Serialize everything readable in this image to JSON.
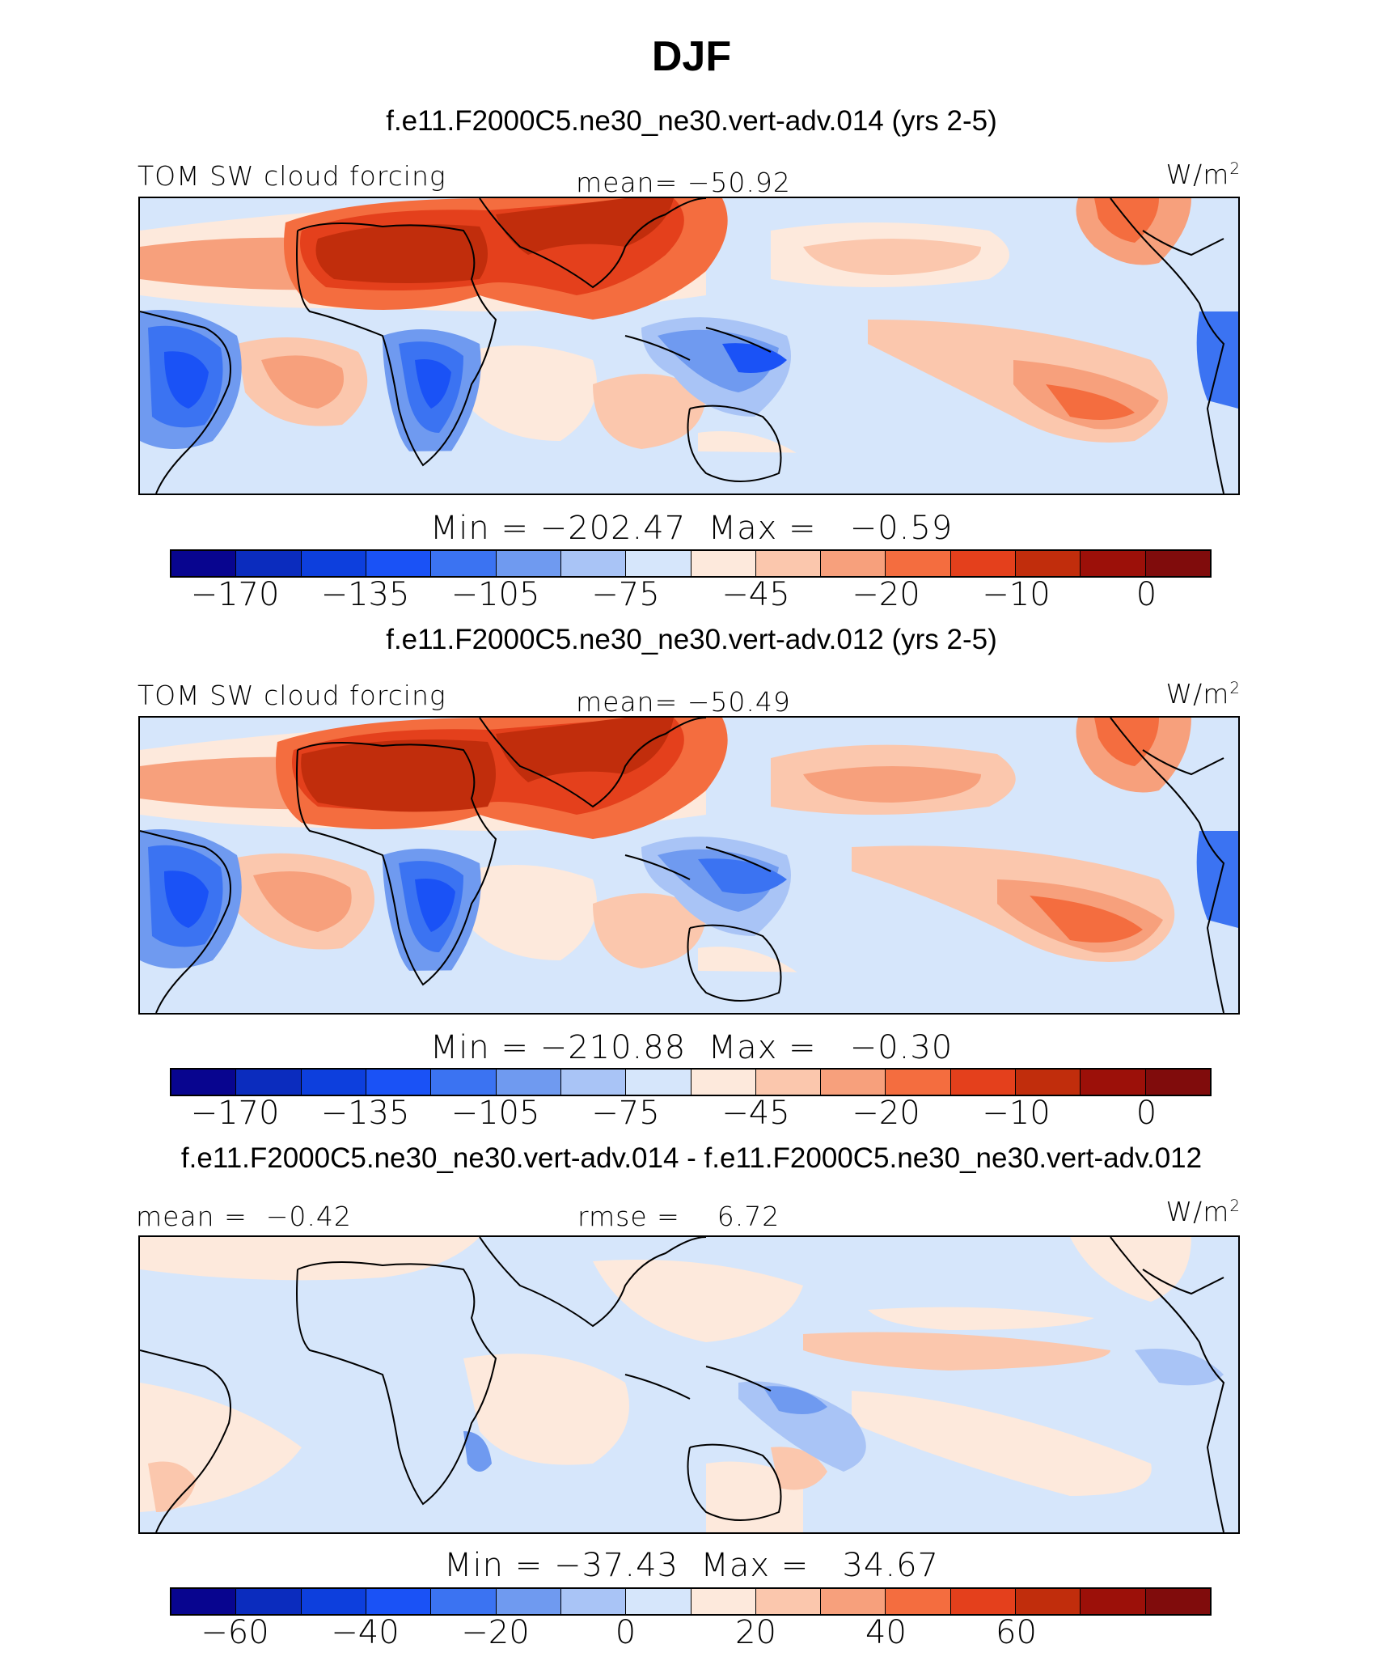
{
  "title": "DJF",
  "units_base": "W/m",
  "units_exp": "2",
  "colors": {
    "abs_palette": [
      "#08058f",
      "#0b2cbe",
      "#0d3fdd",
      "#1a52f6",
      "#3b73f2",
      "#6f9af0",
      "#a9c4f6",
      "#d6e6fb",
      "#fde9dc",
      "#fbc7ad",
      "#f7a07c",
      "#f46d3f",
      "#e4401c",
      "#c12d0c",
      "#9c1009",
      "#800c0c"
    ],
    "diff_palette": [
      "#08058f",
      "#0b2cbe",
      "#0d3fdd",
      "#1a52f6",
      "#3b73f2",
      "#6f9af0",
      "#a9c4f6",
      "#d6e6fb",
      "#fde9dc",
      "#fbc7ad",
      "#f7a07c",
      "#f46d3f",
      "#e4401c",
      "#c12d0c",
      "#9c1009",
      "#800c0c"
    ]
  },
  "panels": [
    {
      "case_title": "f.e11.F2000C5.ne30_ne30.vert-adv.014 (yrs 2-5)",
      "variable": "TOM SW cloud forcing",
      "stat": "mean= −50.92",
      "minmax": "Min = −202.47  Max =   −0.59",
      "ticks": [
        "−170",
        "−135",
        "−105",
        "−75",
        "−45",
        "−20",
        "−10",
        "0"
      ]
    },
    {
      "case_title": "f.e11.F2000C5.ne30_ne30.vert-adv.012 (yrs 2-5)",
      "variable": "TOM SW cloud forcing",
      "stat": "mean= −50.49",
      "minmax": "Min = −210.88  Max =   −0.30",
      "ticks": [
        "−170",
        "−135",
        "−105",
        "−75",
        "−45",
        "−20",
        "−10",
        "0"
      ]
    },
    {
      "case_title": "f.e11.F2000C5.ne30_ne30.vert-adv.014 - f.e11.F2000C5.ne30_ne30.vert-adv.012",
      "mean_label": "mean =  −0.42",
      "rmse_label": "rmse =    6.72",
      "minmax": "Min = −37.43  Max =   34.67",
      "ticks": [
        "−60",
        "−40",
        "−20",
        "0",
        "20",
        "40",
        "60"
      ]
    }
  ]
}
